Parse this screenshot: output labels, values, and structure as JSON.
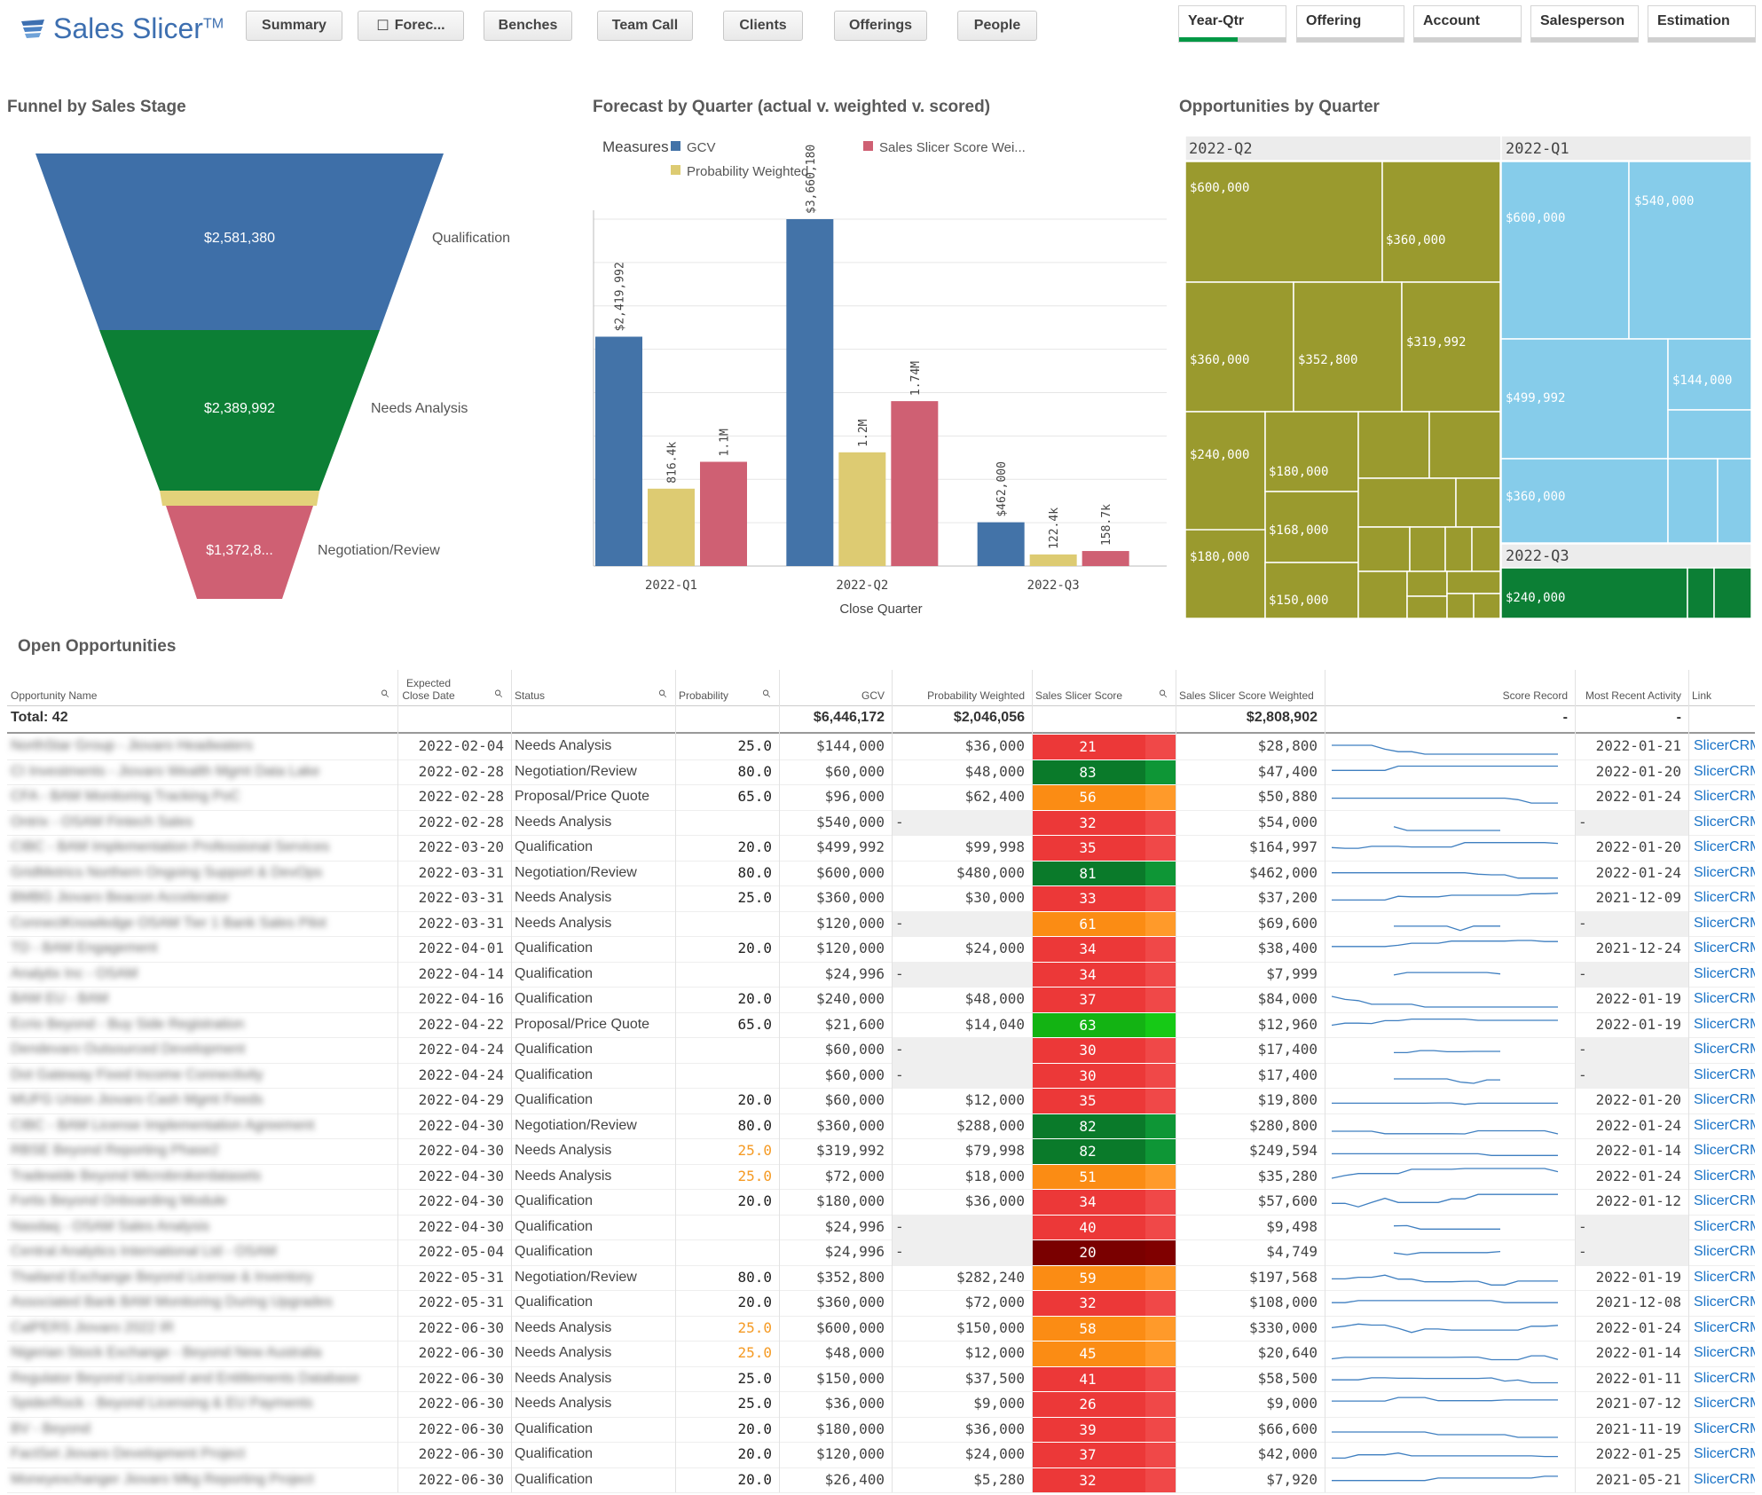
{
  "app": {
    "name": "Sales Slicer",
    "tm": "TM"
  },
  "nav": [
    "Summary",
    "Forec...",
    "Benches",
    "Team Call",
    "Clients",
    "Offerings",
    "People"
  ],
  "filters": [
    {
      "label": "Year-Qtr",
      "selected_fraction": 0.55
    },
    {
      "label": "Offering",
      "selected_fraction": 0
    },
    {
      "label": "Account",
      "selected_fraction": 0
    },
    {
      "label": "Salesperson",
      "selected_fraction": 0
    },
    {
      "label": "Estimation",
      "selected_fraction": 0
    }
  ],
  "funnel": {
    "title": "Funnel by Sales Stage",
    "stages": [
      {
        "label": "Qualification",
        "value": "$2,581,380",
        "color": "#3e6fa8"
      },
      {
        "label": "Needs Analysis",
        "value": "$2,389,992",
        "color": "#0c7f35"
      },
      {
        "label": "",
        "value": "",
        "color": "#e3d27a"
      },
      {
        "label": "Negotiation/Review",
        "value": "$1,372,8...",
        "color": "#cf6073"
      }
    ]
  },
  "forecast": {
    "title": "Forecast by Quarter (actual v. weighted v. scored)",
    "legend_title": "Measures",
    "xlabel": "Close Quarter"
  },
  "chart_data": {
    "type": "bar",
    "categories": [
      "2022-Q1",
      "2022-Q2",
      "2022-Q3"
    ],
    "series": [
      {
        "name": "GCV",
        "color": "#4373a8",
        "values": [
          2419992,
          3660180,
          462000
        ],
        "labels": [
          "$2,419,992",
          "$3,660,180",
          "$462,000"
        ]
      },
      {
        "name": "Probability Weighted",
        "color": "#ddcb72",
        "values": [
          816400,
          1200000,
          122400
        ],
        "labels": [
          "816.4k",
          "1.2M",
          "122.4k"
        ]
      },
      {
        "name": "Sales Slicer Score Wei...",
        "color": "#cf6073",
        "values": [
          1100000,
          1740000,
          158700
        ],
        "labels": [
          "1.1M",
          "1.74M",
          "158.7k"
        ]
      }
    ],
    "ylim": [
      0,
      3660180
    ]
  },
  "treemap": {
    "title": "Opportunities by Quarter",
    "groups": [
      {
        "name": "2022-Q2",
        "color": "#9a9a2e",
        "items": [
          "$600,000",
          "$360,000",
          "$360,000",
          "$352,800",
          "$319,992",
          "$240,000",
          "$180,000",
          "$168,000",
          "$180,000",
          "$150,000"
        ]
      },
      {
        "name": "2022-Q1",
        "color": "#86ccea",
        "items": [
          "$600,000",
          "$540,000",
          "$499,992",
          "$144,000",
          "$360,000"
        ]
      },
      {
        "name": "2022-Q3",
        "color": "#0c7f35",
        "items": [
          "$240,000"
        ]
      }
    ]
  },
  "table": {
    "title": "Open Opportunities",
    "columns": [
      "Opportunity Name",
      "Expected Close Date",
      "Status",
      "Probability",
      "GCV",
      "Probability Weighted",
      "Sales Slicer Score",
      "Sales Slicer Score Weighted",
      "Score Record",
      "Most Recent Activity",
      "Link"
    ],
    "totals": {
      "label": "Total: 42",
      "gcv": "$6,446,172",
      "pw": "$2,046,056",
      "sw": "$2,808,902",
      "score_record": "-",
      "activity": "-"
    },
    "rows": [
      {
        "name": "NorthStar Group - Jiovaro Headwaters",
        "date": "2022-02-04",
        "status": "Needs Analysis",
        "prob": "25.0",
        "gcv": "$144,000",
        "pw": "$36,000",
        "score": "21",
        "sw": "$28,800",
        "act": "2022-01-21",
        "link": "SlicerCRM"
      },
      {
        "name": "CI Investments - Jiovaro Wealth Mgmt Data Lake",
        "date": "2022-02-28",
        "status": "Negotiation/Review",
        "prob": "80.0",
        "gcv": "$60,000",
        "pw": "$48,000",
        "score": "83",
        "sw": "$47,400",
        "act": "2022-01-20",
        "link": "SlicerCRM"
      },
      {
        "name": "CFA - BAM Monitoring Tracking PoC",
        "date": "2022-02-28",
        "status": "Proposal/Price Quote",
        "prob": "65.0",
        "gcv": "$96,000",
        "pw": "$62,400",
        "score": "56",
        "sw": "$50,880",
        "act": "2022-01-24",
        "link": "SlicerCRM"
      },
      {
        "name": "Ontrix - OSAM Fintech Sales",
        "date": "2022-02-28",
        "status": "Needs Analysis",
        "prob": "",
        "gcv": "$540,000",
        "pw": "-",
        "score": "32",
        "sw": "$54,000",
        "act": "-",
        "link": "SlicerCRM"
      },
      {
        "name": "CIBC - BAM Implementation Professional Services",
        "date": "2022-03-20",
        "status": "Qualification",
        "prob": "20.0",
        "gcv": "$499,992",
        "pw": "$99,998",
        "score": "35",
        "sw": "$164,997",
        "act": "2022-01-20",
        "link": "SlicerCRM"
      },
      {
        "name": "GridMetrics Northern Ongoing Support & DevOps",
        "date": "2022-03-31",
        "status": "Negotiation/Review",
        "prob": "80.0",
        "gcv": "$600,000",
        "pw": "$480,000",
        "score": "81",
        "sw": "$462,000",
        "act": "2022-01-24",
        "link": "SlicerCRM"
      },
      {
        "name": "BMBG Jiovaro Beacon Accelerator",
        "date": "2022-03-31",
        "status": "Needs Analysis",
        "prob": "25.0",
        "gcv": "$360,000",
        "pw": "$30,000",
        "score": "33",
        "sw": "$37,200",
        "act": "2021-12-09",
        "link": "SlicerCRM"
      },
      {
        "name": "ConnectKnowledge OSAM Tier 1 Bank Sales Pilot",
        "date": "2022-03-31",
        "status": "Needs Analysis",
        "prob": "",
        "gcv": "$120,000",
        "pw": "-",
        "score": "61",
        "sw": "$69,600",
        "act": "-",
        "link": "SlicerCRM"
      },
      {
        "name": "TD - BAM Engagement",
        "date": "2022-04-01",
        "status": "Qualification",
        "prob": "20.0",
        "gcv": "$120,000",
        "pw": "$24,000",
        "score": "34",
        "sw": "$38,400",
        "act": "2021-12-24",
        "link": "SlicerCRM"
      },
      {
        "name": "Analytix Inc - OSAM",
        "date": "2022-04-14",
        "status": "Qualification",
        "prob": "",
        "gcv": "$24,996",
        "pw": "-",
        "score": "34",
        "sw": "$7,999",
        "act": "-",
        "link": "SlicerCRM"
      },
      {
        "name": "BAM EU - BAM",
        "date": "2022-04-16",
        "status": "Qualification",
        "prob": "20.0",
        "gcv": "$240,000",
        "pw": "$48,000",
        "score": "37",
        "sw": "$84,000",
        "act": "2022-01-19",
        "link": "SlicerCRM"
      },
      {
        "name": "Ecrio Beyond - Buy Side Registration",
        "date": "2022-04-22",
        "status": "Proposal/Price Quote",
        "prob": "65.0",
        "gcv": "$21,600",
        "pw": "$14,040",
        "score": "63",
        "sw": "$12,960",
        "act": "2022-01-19",
        "link": "SlicerCRM"
      },
      {
        "name": "Dendevaro Outsourced Development",
        "date": "2022-04-24",
        "status": "Qualification",
        "prob": "",
        "gcv": "$60,000",
        "pw": "-",
        "score": "30",
        "sw": "$17,400",
        "act": "-",
        "link": "SlicerCRM"
      },
      {
        "name": "Dot Gateway Fixed Income Connectivity",
        "date": "2022-04-24",
        "status": "Qualification",
        "prob": "",
        "gcv": "$60,000",
        "pw": "-",
        "score": "30",
        "sw": "$17,400",
        "act": "-",
        "link": "SlicerCRM"
      },
      {
        "name": "MUFG Union Jiovaro Cash Mgmt Feeds",
        "date": "2022-04-29",
        "status": "Qualification",
        "prob": "20.0",
        "gcv": "$60,000",
        "pw": "$12,000",
        "score": "35",
        "sw": "$19,800",
        "act": "2022-01-20",
        "link": "SlicerCRM"
      },
      {
        "name": "CIBC - BAM License Implementation Agreement",
        "date": "2022-04-30",
        "status": "Negotiation/Review",
        "prob": "80.0",
        "gcv": "$360,000",
        "pw": "$288,000",
        "score": "82",
        "sw": "$280,800",
        "act": "2022-01-24",
        "link": "SlicerCRM"
      },
      {
        "name": "RBSE Beyond Reporting Phase2",
        "date": "2022-04-30",
        "status": "Needs Analysis",
        "prob": "25.0",
        "gcv": "$319,992",
        "pw": "$79,998",
        "score": "82",
        "sw": "$249,594",
        "act": "2022-01-14",
        "link": "SlicerCRM"
      },
      {
        "name": "Tradewide Beyond Microbrokerdatasets",
        "date": "2022-04-30",
        "status": "Needs Analysis",
        "prob": "25.0",
        "gcv": "$72,000",
        "pw": "$18,000",
        "score": "51",
        "sw": "$35,280",
        "act": "2022-01-24",
        "link": "SlicerCRM"
      },
      {
        "name": "Fortis Beyond Onboarding Module",
        "date": "2022-04-30",
        "status": "Qualification",
        "prob": "20.0",
        "gcv": "$180,000",
        "pw": "$36,000",
        "score": "34",
        "sw": "$57,600",
        "act": "2022-01-12",
        "link": "SlicerCRM"
      },
      {
        "name": "Nasdaq - OSAM Sales Analysis",
        "date": "2022-04-30",
        "status": "Qualification",
        "prob": "",
        "gcv": "$24,996",
        "pw": "-",
        "score": "40",
        "sw": "$9,498",
        "act": "-",
        "link": "SlicerCRM"
      },
      {
        "name": "Central Analytics International Ltd - OSAM",
        "date": "2022-05-04",
        "status": "Qualification",
        "prob": "",
        "gcv": "$24,996",
        "pw": "-",
        "score": "20",
        "sw": "$4,749",
        "act": "-",
        "link": "SlicerCRM"
      },
      {
        "name": "Thailand Exchange Beyond License & Inventory",
        "date": "2022-05-31",
        "status": "Negotiation/Review",
        "prob": "80.0",
        "gcv": "$352,800",
        "pw": "$282,240",
        "score": "59",
        "sw": "$197,568",
        "act": "2022-01-19",
        "link": "SlicerCRM"
      },
      {
        "name": "Associated Bank BAM Monitoring During Upgrades",
        "date": "2022-05-31",
        "status": "Qualification",
        "prob": "20.0",
        "gcv": "$360,000",
        "pw": "$72,000",
        "score": "32",
        "sw": "$108,000",
        "act": "2021-12-08",
        "link": "SlicerCRM"
      },
      {
        "name": "CalPERS Jiovaro 2022 IR",
        "date": "2022-06-30",
        "status": "Needs Analysis",
        "prob": "25.0",
        "gcv": "$600,000",
        "pw": "$150,000",
        "score": "58",
        "sw": "$330,000",
        "act": "2022-01-24",
        "link": "SlicerCRM"
      },
      {
        "name": "Nigerian Stock Exchange - Beyond New Australia",
        "date": "2022-06-30",
        "status": "Needs Analysis",
        "prob": "25.0",
        "gcv": "$48,000",
        "pw": "$12,000",
        "score": "45",
        "sw": "$20,640",
        "act": "2022-01-14",
        "link": "SlicerCRM"
      },
      {
        "name": "Regulator Beyond Licensed and Entitlements Database",
        "date": "2022-06-30",
        "status": "Needs Analysis",
        "prob": "25.0",
        "gcv": "$150,000",
        "pw": "$37,500",
        "score": "41",
        "sw": "$58,500",
        "act": "2022-01-11",
        "link": "SlicerCRM"
      },
      {
        "name": "SpiderRock - Beyond Licensing & EU Payments",
        "date": "2022-06-30",
        "status": "Needs Analysis",
        "prob": "25.0",
        "gcv": "$36,000",
        "pw": "$9,000",
        "score": "26",
        "sw": "$9,000",
        "act": "2021-07-12",
        "link": "SlicerCRM"
      },
      {
        "name": "BV - Beyond",
        "date": "2022-06-30",
        "status": "Qualification",
        "prob": "20.0",
        "gcv": "$180,000",
        "pw": "$36,000",
        "score": "39",
        "sw": "$66,600",
        "act": "2021-11-19",
        "link": "SlicerCRM"
      },
      {
        "name": "FactSet Jiovaro Development Project",
        "date": "2022-06-30",
        "status": "Qualification",
        "prob": "20.0",
        "gcv": "$120,000",
        "pw": "$24,000",
        "score": "37",
        "sw": "$42,000",
        "act": "2022-01-25",
        "link": "SlicerCRM"
      },
      {
        "name": "Moneyexchanger Jiovaro Mkg Reporting Project",
        "date": "2022-06-30",
        "status": "Qualification",
        "prob": "20.0",
        "gcv": "$26,400",
        "pw": "$5,280",
        "score": "32",
        "sw": "$7,920",
        "act": "2021-05-21",
        "link": "SlicerCRM"
      }
    ]
  }
}
